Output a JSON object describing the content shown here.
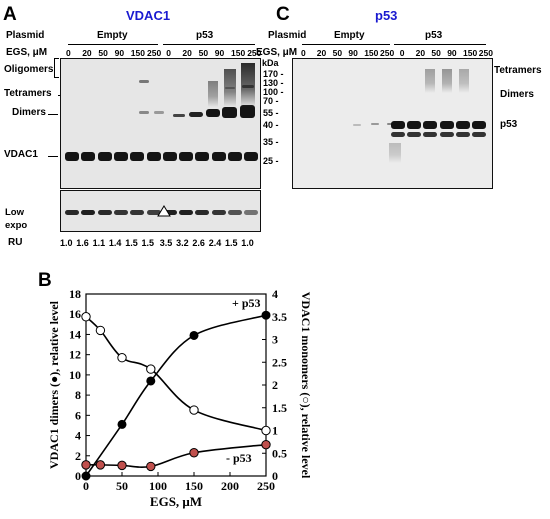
{
  "panels": {
    "A": {
      "letter": "A",
      "title": "VDAC1",
      "plasmid_label": "Plasmid",
      "egs_label": "EGS, μM",
      "groups": [
        "Empty",
        "p53"
      ],
      "lanes": [
        "0",
        "20",
        "50",
        "90",
        "150",
        "250",
        "0",
        "20",
        "50",
        "90",
        "150",
        "250"
      ],
      "kda_label": "kDa",
      "markers": [
        "170",
        "130",
        "100",
        "70",
        "55",
        "40",
        "35",
        "25"
      ],
      "left_labels": {
        "oligomers": "Oligomers",
        "tetramers": "Tetramers",
        "dimers": "Dimers",
        "vdac1": "VDAC1",
        "low_expo": "Low\nexpo"
      },
      "ru_label": "RU",
      "ru_values": [
        "1.0",
        "1.6",
        "1.1",
        "1.4",
        "1.5",
        "1.5",
        "3.5",
        "3.2",
        "2.6",
        "2.4",
        "1.5",
        "1.0"
      ]
    },
    "C": {
      "letter": "C",
      "title": "p53",
      "plasmid_label": "Plasmid",
      "egs_label": "EGS, μM",
      "groups": [
        "Empty",
        "p53"
      ],
      "lanes": [
        "0",
        "20",
        "50",
        "90",
        "150",
        "250",
        "0",
        "20",
        "50",
        "90",
        "150",
        "250"
      ],
      "right_labels": {
        "tetramers": "Tetramers",
        "dimers": "Dimers",
        "p53": "p53"
      }
    },
    "B": {
      "letter": "B",
      "annotations": {
        "plus_p53": "+ p53",
        "minus_p53": "- p53"
      }
    }
  },
  "chart_data": {
    "type": "scatter",
    "xlabel": "EGS, μM",
    "ylabel_left": "VDAC1 dimers (●), relative level",
    "ylabel_right": "VDAC1 monomers (○), relative level",
    "xlim": [
      0,
      250
    ],
    "xticks": [
      0,
      50,
      100,
      150,
      200,
      250
    ],
    "ylim_left": [
      0,
      18
    ],
    "yticks_left": [
      0,
      2,
      4,
      6,
      8,
      10,
      12,
      14,
      16,
      18
    ],
    "ylim_right": [
      0,
      4
    ],
    "yticks_right": [
      0,
      0.5,
      1,
      1.5,
      2,
      2.5,
      3,
      3.5,
      4
    ],
    "series": [
      {
        "name": "+ p53",
        "axis": "left",
        "marker": "filled-black",
        "x": [
          0,
          50,
          90,
          150,
          250
        ],
        "y": [
          0,
          5.1,
          9.4,
          13.9,
          15.9
        ]
      },
      {
        "name": "- p53",
        "axis": "left",
        "marker": "filled-red",
        "x": [
          0,
          20,
          50,
          90,
          150,
          250
        ],
        "y": [
          1.1,
          1.1,
          1.05,
          0.95,
          2.3,
          3.1
        ]
      },
      {
        "name": "monomers",
        "axis": "right",
        "marker": "open",
        "x": [
          0,
          20,
          50,
          90,
          150,
          250
        ],
        "y": [
          3.5,
          3.2,
          2.6,
          2.35,
          1.45,
          1.0
        ]
      }
    ],
    "colors": {
      "red_marker": "#c0504d",
      "black_marker": "#000000",
      "open_marker": "#ffffff"
    }
  }
}
